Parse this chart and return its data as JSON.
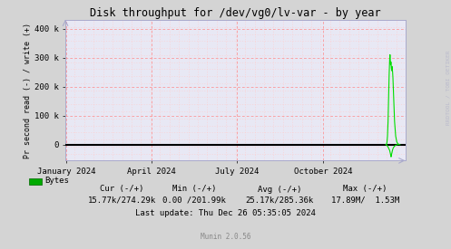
{
  "title": "Disk throughput for /dev/vg0/lv-var - by year",
  "ylabel": "Pr second read (-) / write (+)",
  "bg_color": "#d4d4d4",
  "plot_bg_color": "#e8e8f4",
  "grid_color_major": "#ff8888",
  "grid_color_minor": "#ffcccc",
  "yticks": [
    0,
    100000,
    200000,
    300000,
    400000
  ],
  "ytick_labels": [
    "0",
    "100 k",
    "200 k",
    "300 k",
    "400 k"
  ],
  "ylim": [
    -55000,
    430000
  ],
  "xlim_start": 1703980800,
  "xlim_end": 1735344000,
  "xtick_positions": [
    1704067200,
    1711929600,
    1719792000,
    1727740800
  ],
  "xtick_labels": [
    "January 2024",
    "April 2024",
    "July 2024",
    "October 2024"
  ],
  "line_color": "#00dd00",
  "zero_line_color": "#000000",
  "legend_label": "Bytes",
  "legend_color": "#00aa00",
  "cur_label": "Cur (-/+)",
  "cur_value": "15.77k/274.29k",
  "min_label": "Min (-/+)",
  "min_value": "0.00 /201.99k",
  "avg_label": "Avg (-/+)",
  "avg_value": "25.17k/285.36k",
  "max_label": "Max (-/+)",
  "max_value": "17.89M/  1.53M",
  "last_update": "Last update: Thu Dec 26 05:35:05 2024",
  "munin_label": "Munin 2.0.56",
  "rrdtool_label": "RRDTOOL / TOBI OETIKER",
  "spike_data_positive": [
    [
      1733500000,
      0
    ],
    [
      1733550000,
      1000
    ],
    [
      1733600000,
      8000
    ],
    [
      1733650000,
      30000
    ],
    [
      1733700000,
      80000
    ],
    [
      1733750000,
      160000
    ],
    [
      1733800000,
      240000
    ],
    [
      1733850000,
      295000
    ],
    [
      1733880000,
      310000
    ],
    [
      1733910000,
      290000
    ],
    [
      1733940000,
      275000
    ],
    [
      1733970000,
      285000
    ],
    [
      1734000000,
      265000
    ],
    [
      1734030000,
      255000
    ],
    [
      1734060000,
      270000
    ],
    [
      1734090000,
      260000
    ],
    [
      1734120000,
      250000
    ],
    [
      1734150000,
      230000
    ],
    [
      1734200000,
      180000
    ],
    [
      1734300000,
      80000
    ],
    [
      1734400000,
      30000
    ],
    [
      1734500000,
      10000
    ],
    [
      1734600000,
      3000
    ],
    [
      1734700000,
      1000
    ],
    [
      1734800000,
      0
    ]
  ],
  "spike_data_negative": [
    [
      1733500000,
      0
    ],
    [
      1733550000,
      -500
    ],
    [
      1733600000,
      -2000
    ],
    [
      1733650000,
      -5000
    ],
    [
      1733700000,
      -8000
    ],
    [
      1733750000,
      -12000
    ],
    [
      1733800000,
      -16000
    ],
    [
      1733850000,
      -20000
    ],
    [
      1733880000,
      -25000
    ],
    [
      1733910000,
      -30000
    ],
    [
      1733940000,
      -35000
    ],
    [
      1733960000,
      -40000
    ],
    [
      1733980000,
      -42000
    ],
    [
      1734000000,
      -38000
    ],
    [
      1734030000,
      -32000
    ],
    [
      1734060000,
      -28000
    ],
    [
      1734090000,
      -22000
    ],
    [
      1734120000,
      -18000
    ],
    [
      1734150000,
      -14000
    ],
    [
      1734200000,
      -10000
    ],
    [
      1734300000,
      -5000
    ],
    [
      1734400000,
      -2000
    ],
    [
      1734500000,
      -500
    ],
    [
      1734600000,
      0
    ]
  ]
}
